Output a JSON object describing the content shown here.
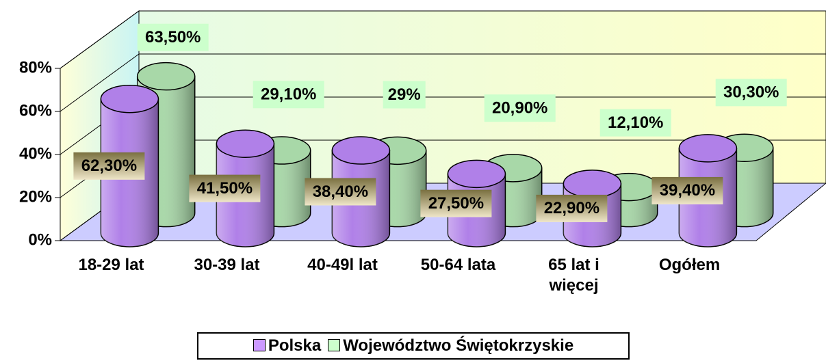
{
  "chart_data": {
    "type": "bar3d",
    "categories": [
      "18-29 lat",
      "30-39 lat",
      "40-49l lat",
      "50-64 lata",
      "65 lat i więcej",
      "Ogółem"
    ],
    "series": [
      {
        "name": "Polska",
        "color": "#cc99ff",
        "values": [
          62.3,
          41.5,
          38.4,
          27.5,
          22.9,
          39.4
        ],
        "value_labels": [
          "62,30%",
          "41,50%",
          "38,40%",
          "27,50%",
          "22,90%",
          "39,40%"
        ]
      },
      {
        "name": "Województwo Świętokrzyskie",
        "color": "#ccffcc",
        "values": [
          63.5,
          29.1,
          29,
          20.9,
          12.1,
          30.3
        ],
        "value_labels": [
          "63,50%",
          "29,10%",
          "29%",
          "20,90%",
          "12,10%",
          "30,30%"
        ]
      }
    ],
    "ylim": [
      0,
      80
    ],
    "yticks": [
      {
        "value": 0,
        "label": "0%"
      },
      {
        "value": 20,
        "label": "20%"
      },
      {
        "value": 40,
        "label": "40%"
      },
      {
        "value": 60,
        "label": "60%"
      },
      {
        "value": 80,
        "label": "80%"
      }
    ],
    "grid": true,
    "legend": "bottom"
  }
}
